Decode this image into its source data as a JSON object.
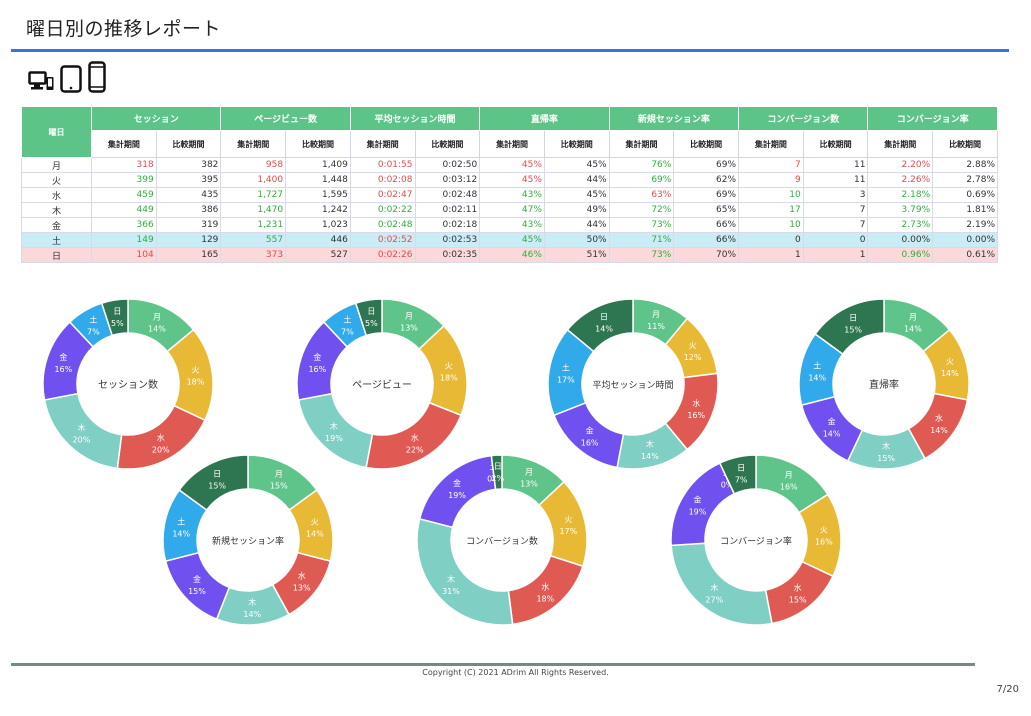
{
  "page": {
    "title": "曜日別の推移レポート",
    "copyright": "Copyright (C) 2021 ADrim All Rights Reserved.",
    "page_number": "7/20"
  },
  "devices": [
    "desktop-icon",
    "tablet-icon",
    "smartphone-icon"
  ],
  "colors": {
    "accent_rule": "#3a6fe8",
    "table_header": "#5cc487",
    "saturday_row": "#c9ecf6",
    "sunday_row": "#fbd8da",
    "up": "#2fae3e",
    "down": "#e54b4b",
    "footer_rule": "#6f8d86",
    "days": {
      "月": "#5ec48a",
      "火": "#e8b934",
      "水": "#e05a54",
      "木": "#7fcfc5",
      "金": "#7150f0",
      "土": "#30aaea",
      "日": "#2e7551"
    }
  },
  "table": {
    "day_header": "曜日",
    "groups": [
      "セッション",
      "ページビュー数",
      "平均セッション時間",
      "直帰率",
      "新規セッション率",
      "コンバージョン数",
      "コンバージョン率"
    ],
    "sub_headers": [
      "集計期間",
      "比較期間"
    ],
    "rows": [
      {
        "day": "月",
        "cells": [
          [
            "318",
            "red"
          ],
          [
            "382",
            "plain"
          ],
          [
            "958",
            "red"
          ],
          [
            "1,409",
            "plain"
          ],
          [
            "0:01:55",
            "red"
          ],
          [
            "0:02:50",
            "plain"
          ],
          [
            "45%",
            "red"
          ],
          [
            "45%",
            "plain"
          ],
          [
            "76%",
            "green"
          ],
          [
            "69%",
            "plain"
          ],
          [
            "7",
            "red"
          ],
          [
            "11",
            "plain"
          ],
          [
            "2.20%",
            "red"
          ],
          [
            "2.88%",
            "plain"
          ]
        ]
      },
      {
        "day": "火",
        "cells": [
          [
            "399",
            "green"
          ],
          [
            "395",
            "plain"
          ],
          [
            "1,400",
            "red"
          ],
          [
            "1,448",
            "plain"
          ],
          [
            "0:02:08",
            "red"
          ],
          [
            "0:03:12",
            "plain"
          ],
          [
            "45%",
            "red"
          ],
          [
            "44%",
            "plain"
          ],
          [
            "69%",
            "green"
          ],
          [
            "62%",
            "plain"
          ],
          [
            "9",
            "red"
          ],
          [
            "11",
            "plain"
          ],
          [
            "2.26%",
            "red"
          ],
          [
            "2.78%",
            "plain"
          ]
        ]
      },
      {
        "day": "水",
        "cells": [
          [
            "459",
            "green"
          ],
          [
            "435",
            "plain"
          ],
          [
            "1,727",
            "green"
          ],
          [
            "1,595",
            "plain"
          ],
          [
            "0:02:47",
            "red"
          ],
          [
            "0:02:48",
            "plain"
          ],
          [
            "43%",
            "green"
          ],
          [
            "45%",
            "plain"
          ],
          [
            "63%",
            "red"
          ],
          [
            "69%",
            "plain"
          ],
          [
            "10",
            "green"
          ],
          [
            "3",
            "plain"
          ],
          [
            "2.18%",
            "green"
          ],
          [
            "0.69%",
            "plain"
          ]
        ]
      },
      {
        "day": "木",
        "cells": [
          [
            "449",
            "green"
          ],
          [
            "386",
            "plain"
          ],
          [
            "1,470",
            "green"
          ],
          [
            "1,242",
            "plain"
          ],
          [
            "0:02:22",
            "green"
          ],
          [
            "0:02:11",
            "plain"
          ],
          [
            "47%",
            "green"
          ],
          [
            "49%",
            "plain"
          ],
          [
            "72%",
            "green"
          ],
          [
            "65%",
            "plain"
          ],
          [
            "17",
            "green"
          ],
          [
            "7",
            "plain"
          ],
          [
            "3.79%",
            "green"
          ],
          [
            "1.81%",
            "plain"
          ]
        ]
      },
      {
        "day": "金",
        "cells": [
          [
            "366",
            "green"
          ],
          [
            "319",
            "plain"
          ],
          [
            "1,231",
            "green"
          ],
          [
            "1,023",
            "plain"
          ],
          [
            "0:02:48",
            "green"
          ],
          [
            "0:02:18",
            "plain"
          ],
          [
            "43%",
            "green"
          ],
          [
            "44%",
            "plain"
          ],
          [
            "73%",
            "green"
          ],
          [
            "66%",
            "plain"
          ],
          [
            "10",
            "green"
          ],
          [
            "7",
            "plain"
          ],
          [
            "2.73%",
            "green"
          ],
          [
            "2.19%",
            "plain"
          ]
        ]
      },
      {
        "day": "土",
        "cls": "sat",
        "cells": [
          [
            "149",
            "green"
          ],
          [
            "129",
            "plain"
          ],
          [
            "557",
            "green"
          ],
          [
            "446",
            "plain"
          ],
          [
            "0:02:52",
            "red"
          ],
          [
            "0:02:53",
            "plain"
          ],
          [
            "45%",
            "green"
          ],
          [
            "50%",
            "plain"
          ],
          [
            "71%",
            "green"
          ],
          [
            "66%",
            "plain"
          ],
          [
            "0",
            "plain"
          ],
          [
            "0",
            "plain"
          ],
          [
            "0.00%",
            "plain"
          ],
          [
            "0.00%",
            "plain"
          ]
        ]
      },
      {
        "day": "日",
        "cls": "sun",
        "cells": [
          [
            "104",
            "red"
          ],
          [
            "165",
            "plain"
          ],
          [
            "373",
            "red"
          ],
          [
            "527",
            "plain"
          ],
          [
            "0:02:26",
            "red"
          ],
          [
            "0:02:35",
            "plain"
          ],
          [
            "46%",
            "green"
          ],
          [
            "51%",
            "plain"
          ],
          [
            "73%",
            "green"
          ],
          [
            "70%",
            "plain"
          ],
          [
            "1",
            "plain"
          ],
          [
            "1",
            "plain"
          ],
          [
            "0.96%",
            "green"
          ],
          [
            "0.61%",
            "plain"
          ]
        ]
      }
    ]
  },
  "chart_data": [
    {
      "type": "pie",
      "title": "セッション数",
      "categories": [
        "月",
        "火",
        "水",
        "木",
        "金",
        "土",
        "日"
      ],
      "values": [
        14,
        18,
        20,
        20,
        16,
        7,
        5
      ],
      "labels": [
        "14%",
        "18%",
        "20%",
        "20%",
        "16%",
        "7%",
        "5%"
      ]
    },
    {
      "type": "pie",
      "title": "ページビュー",
      "categories": [
        "月",
        "火",
        "水",
        "木",
        "金",
        "土",
        "日"
      ],
      "values": [
        13,
        18,
        22,
        19,
        16,
        7,
        5
      ],
      "labels": [
        "13%",
        "18%",
        "22%",
        "19%",
        "16%",
        "7%",
        "5%"
      ]
    },
    {
      "type": "pie",
      "title": "平均セッション時間",
      "categories": [
        "月",
        "火",
        "水",
        "木",
        "金",
        "土",
        "日"
      ],
      "values": [
        11,
        12,
        16,
        14,
        16,
        17,
        14
      ],
      "labels": [
        "11%",
        "12%",
        "16%",
        "14%",
        "16%",
        "17%",
        "14%"
      ]
    },
    {
      "type": "pie",
      "title": "直帰率",
      "categories": [
        "月",
        "火",
        "水",
        "木",
        "金",
        "土",
        "日"
      ],
      "values": [
        14,
        14,
        14,
        15,
        14,
        14,
        15
      ],
      "labels": [
        "14%",
        "14%",
        "14%",
        "15%",
        "14%",
        "14%",
        "15%"
      ]
    },
    {
      "type": "pie",
      "title": "新規セッション率",
      "categories": [
        "月",
        "火",
        "水",
        "木",
        "金",
        "土",
        "日"
      ],
      "values": [
        15,
        14,
        13,
        14,
        15,
        14,
        15
      ],
      "labels": [
        "15%",
        "14%",
        "13%",
        "14%",
        "15%",
        "14%",
        "15%"
      ]
    },
    {
      "type": "pie",
      "title": "コンバージョン数",
      "categories": [
        "月",
        "火",
        "水",
        "木",
        "金",
        "土",
        "日"
      ],
      "values": [
        13,
        17,
        18,
        31,
        19,
        0,
        2
      ],
      "labels": [
        "13%",
        "17%",
        "18%",
        "31%",
        "19%",
        "0%",
        "2%"
      ]
    },
    {
      "type": "pie",
      "title": "コンバージョン率",
      "categories": [
        "月",
        "火",
        "水",
        "木",
        "金",
        "土",
        "日"
      ],
      "values": [
        16,
        16,
        15,
        27,
        19,
        0,
        7
      ],
      "labels": [
        "16%",
        "16%",
        "15%",
        "27%",
        "19%",
        "0%",
        "7%"
      ]
    }
  ]
}
